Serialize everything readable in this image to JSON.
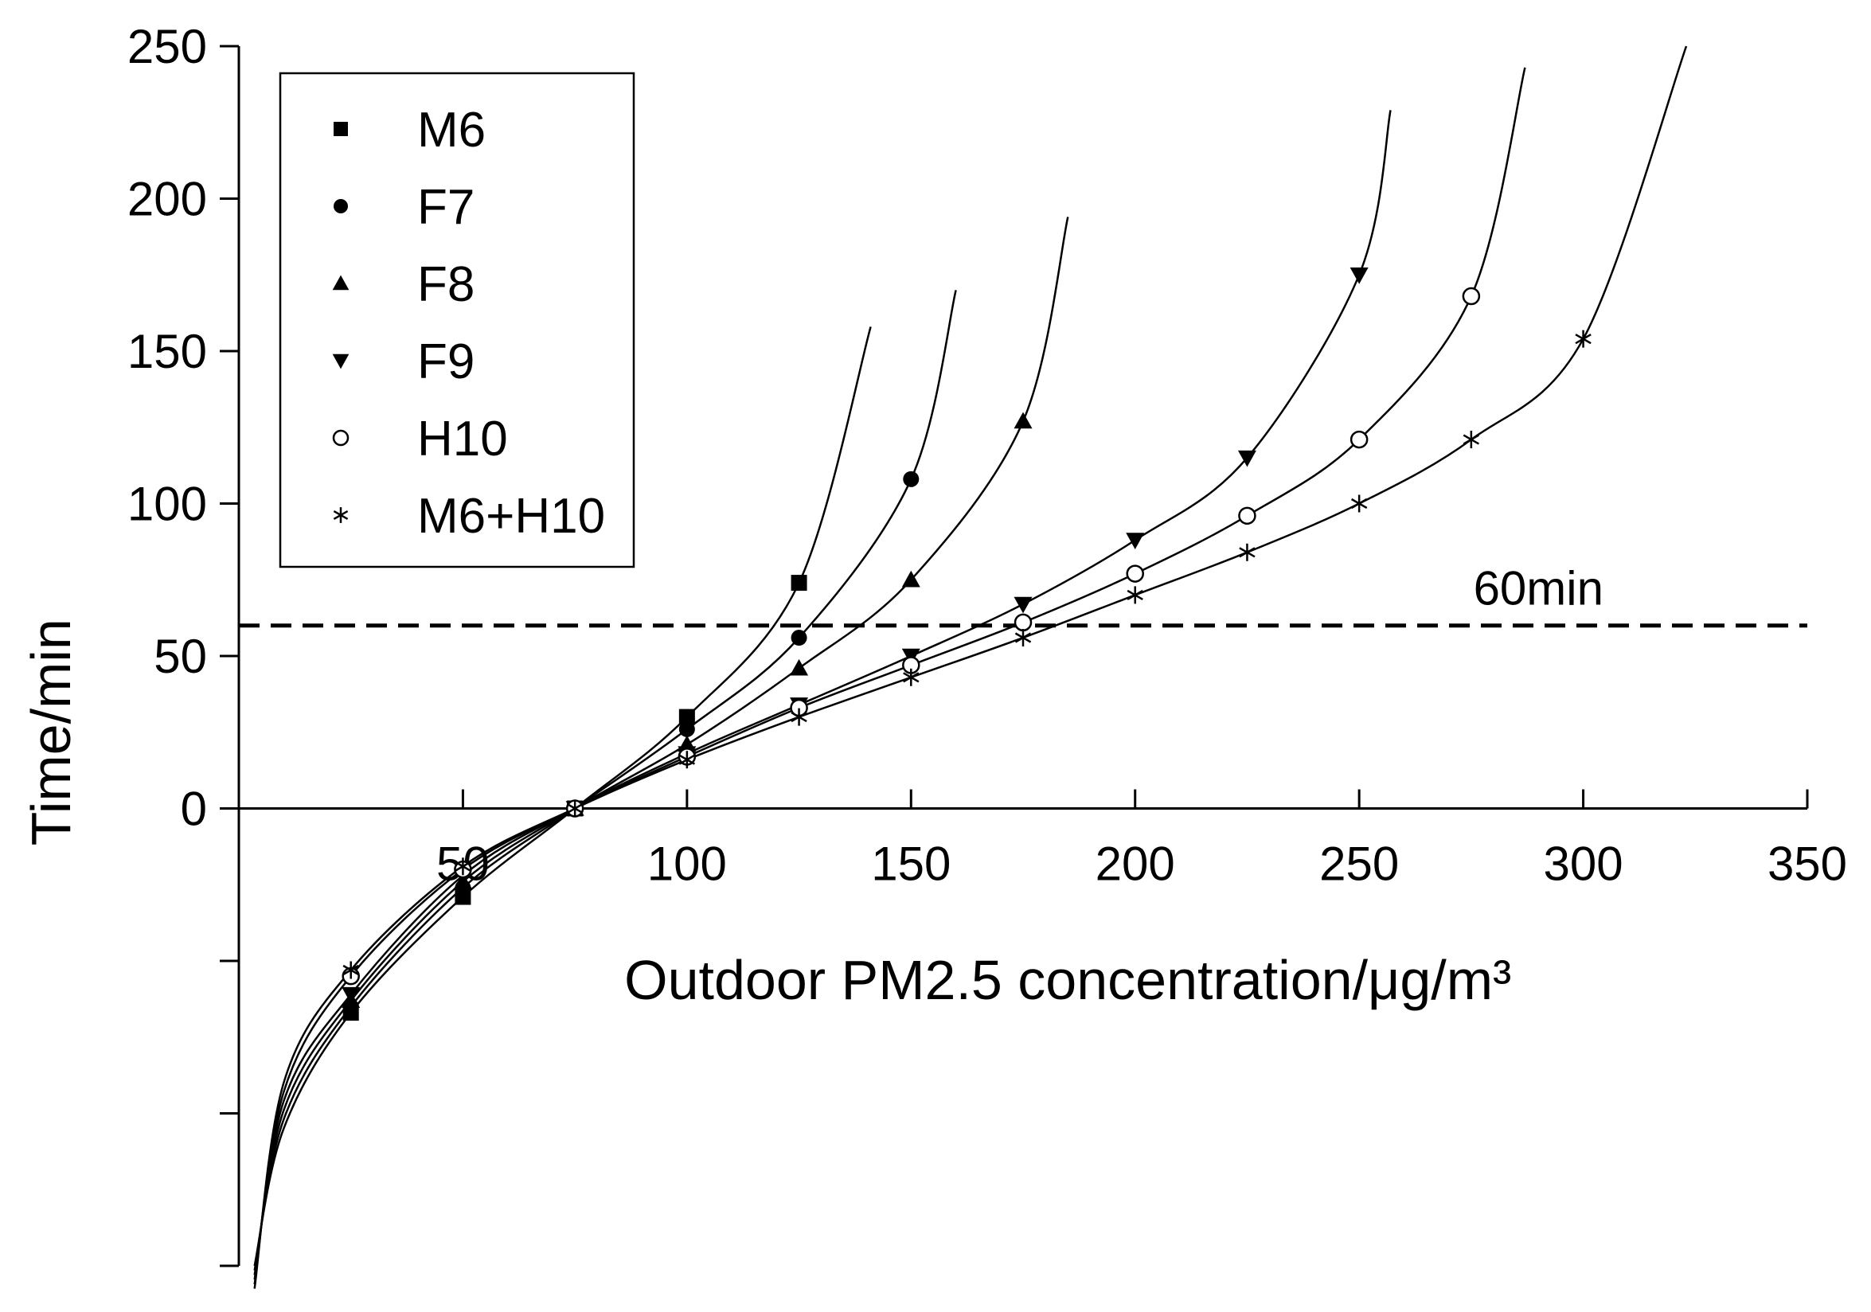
{
  "chart_data": {
    "type": "line",
    "title": "",
    "xlabel": "Outdoor PM2.5 concentration/μg/m³",
    "ylabel": "Time/min",
    "xlim": [
      0,
      350
    ],
    "ylim": [
      -150,
      250
    ],
    "x_ticks": [
      50,
      100,
      150,
      200,
      250,
      300,
      350
    ],
    "x_tick_labels": [
      "50",
      "100",
      "150",
      "200",
      "250",
      "300",
      "350"
    ],
    "y_ticks": [
      -150,
      -100,
      -50,
      0,
      50,
      100,
      150,
      200,
      250
    ],
    "y_tick_labels": [
      "",
      "",
      "",
      "0",
      "50",
      "100",
      "150",
      "200",
      "250"
    ],
    "grid": false,
    "legend_position": "top-left",
    "reference_line": {
      "y": 60,
      "label": "60min",
      "style": "dashed"
    },
    "series": [
      {
        "name": "M6",
        "marker": "square",
        "points": [
          [
            25,
            -67
          ],
          [
            50,
            -29
          ],
          [
            75,
            0
          ],
          [
            100,
            30
          ],
          [
            125,
            74
          ]
        ],
        "curve_end": [
          141,
          158
        ]
      },
      {
        "name": "F7",
        "marker": "circle-filled",
        "points": [
          [
            25,
            -65
          ],
          [
            50,
            -26
          ],
          [
            75,
            0
          ],
          [
            100,
            26
          ],
          [
            125,
            56
          ],
          [
            150,
            108
          ]
        ],
        "curve_end": [
          160,
          170
        ]
      },
      {
        "name": "F8",
        "marker": "triangle-up",
        "points": [
          [
            25,
            -63
          ],
          [
            50,
            -24
          ],
          [
            75,
            0
          ],
          [
            100,
            21
          ],
          [
            125,
            46
          ],
          [
            150,
            75
          ],
          [
            175,
            127
          ]
        ],
        "curve_end": [
          185,
          194
        ]
      },
      {
        "name": "F9",
        "marker": "triangle-down",
        "points": [
          [
            25,
            -61
          ],
          [
            50,
            -22
          ],
          [
            75,
            0
          ],
          [
            100,
            18
          ],
          [
            125,
            34
          ],
          [
            150,
            50
          ],
          [
            175,
            67
          ],
          [
            200,
            88
          ],
          [
            225,
            115
          ],
          [
            250,
            175
          ]
        ],
        "curve_end": [
          257,
          229
        ]
      },
      {
        "name": "H10",
        "marker": "circle-open",
        "points": [
          [
            25,
            -55
          ],
          [
            50,
            -20
          ],
          [
            75,
            0
          ],
          [
            100,
            17
          ],
          [
            125,
            33
          ],
          [
            150,
            47
          ],
          [
            175,
            61
          ],
          [
            200,
            77
          ],
          [
            225,
            96
          ],
          [
            250,
            121
          ],
          [
            275,
            168
          ]
        ],
        "curve_end": [
          287,
          243
        ]
      },
      {
        "name": "M6+H10",
        "marker": "asterisk",
        "points": [
          [
            25,
            -53
          ],
          [
            50,
            -19
          ],
          [
            75,
            0
          ],
          [
            100,
            16
          ],
          [
            125,
            30
          ],
          [
            150,
            43
          ],
          [
            175,
            56
          ],
          [
            200,
            70
          ],
          [
            225,
            84
          ],
          [
            250,
            100
          ],
          [
            275,
            121
          ],
          [
            300,
            154
          ]
        ],
        "curve_end": [
          323,
          250
        ]
      }
    ]
  }
}
